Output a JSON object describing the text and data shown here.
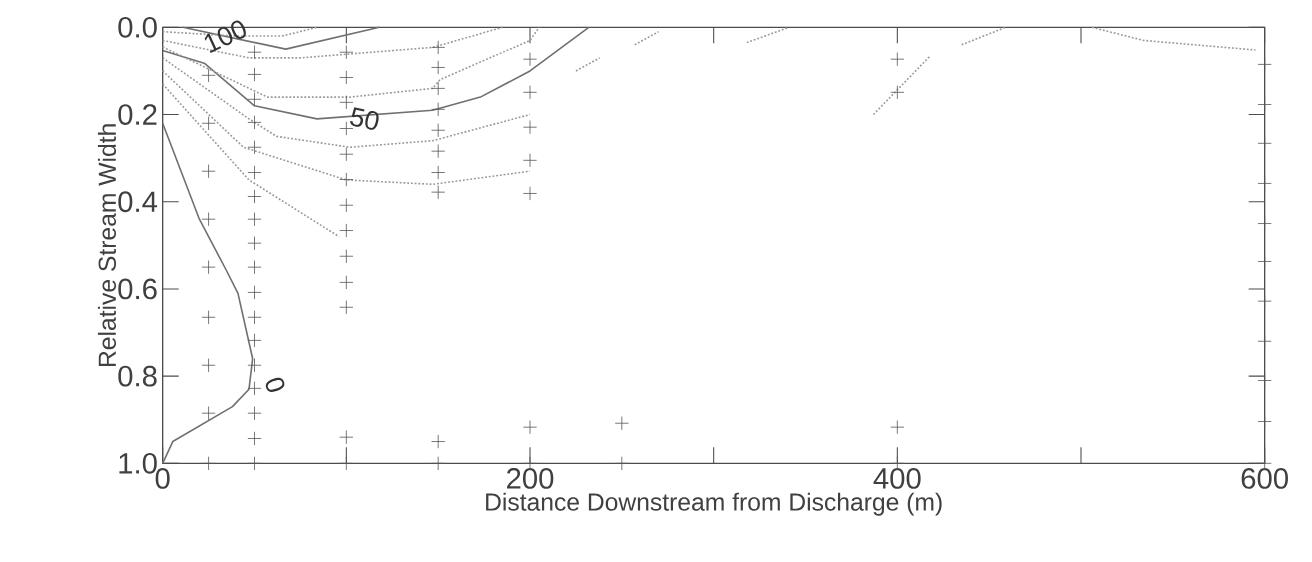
{
  "chart_data": {
    "type": "line",
    "xlabel": "Distance Downstream from Discharge (m)",
    "ylabel": "Relative Stream Width",
    "xlim": [
      0,
      600
    ],
    "ylim": [
      1.0,
      0.0
    ],
    "xticks": [
      0,
      {
        "value": 100,
        "label": null
      },
      200,
      {
        "value": 300,
        "label": null
      },
      400,
      {
        "value": 500,
        "label": null
      },
      600
    ],
    "yticks": [
      {
        "value": 0.0,
        "label": "0.0"
      },
      {
        "value": 0.2,
        "label": "0.2"
      },
      {
        "value": 0.4,
        "label": "0.4"
      },
      {
        "value": 0.6,
        "label": "0.6"
      },
      {
        "value": 0.8,
        "label": "0.8"
      },
      {
        "value": 1.0,
        "label": "1.0"
      }
    ],
    "annotations": [
      {
        "text": "100",
        "x": 34,
        "y": 0.02
      },
      {
        "text": "50",
        "x": 110,
        "y": 0.21
      },
      "0"
    ],
    "series": [
      {
        "color": "#707070",
        "line_style": "solid",
        "marker": "none",
        "x": [
          11,
          67,
          118
        ],
        "values": [
          0,
          0.05,
          0
        ]
      },
      {
        "color": "#707070",
        "line_style": "solid",
        "marker": "none",
        "x": [
          0,
          23,
          50,
          84,
          147,
          173,
          200,
          232
        ],
        "values": [
          0.053,
          0.083,
          0.18,
          0.21,
          0.19,
          0.16,
          0.1,
          0
        ]
      },
      {
        "color": "#707070",
        "line_style": "solid",
        "marker": "none",
        "x": [
          0,
          20,
          35,
          41,
          49,
          47,
          38,
          5.5,
          0
        ],
        "values": [
          0.22,
          0.44,
          0.56,
          0.61,
          0.76,
          0.83,
          0.87,
          0.95,
          1.0
        ]
      },
      {
        "color": "#999999",
        "line_style": "dotted",
        "marker": "none",
        "x": [
          0,
          40,
          65,
          84
        ],
        "values": [
          0.01,
          0.02,
          0.02,
          0
        ]
      },
      {
        "type": "line",
        "color": "#999999",
        "line_style": "dotted",
        "marker": "none",
        "x": [
          0,
          47,
          75,
          147,
          185
        ],
        "values": [
          0.03,
          0.07,
          0.07,
          0.046,
          0
        ]
      },
      {
        "type": "line",
        "color": "#999999",
        "line_style": "dotted",
        "marker": "none",
        "x": [
          0,
          57,
          102,
          147,
          151,
          200,
          205
        ],
        "values": [
          0.045,
          0.16,
          0.16,
          0.14,
          0.12,
          0.03,
          0
        ]
      },
      {
        "type": "line",
        "color": "#999999",
        "line_style": "dotted",
        "marker": "none",
        "x": [
          0,
          47,
          62,
          102,
          147,
          200
        ],
        "values": [
          0.07,
          0.21,
          0.25,
          0.275,
          0.26,
          0.2
        ]
      },
      {
        "type": "line",
        "color": "#999999",
        "line_style": "dotted",
        "marker": "none",
        "x": [
          0,
          44,
          100,
          147,
          200
        ],
        "values": [
          0.1,
          0.275,
          0.35,
          0.36,
          0.33
        ]
      },
      {
        "type": "line",
        "color": "#999999",
        "line_style": "dotted",
        "marker": "none",
        "x": [
          0,
          47,
          96
        ],
        "values": [
          0.13,
          0.35,
          0.48
        ]
      },
      {
        "type": "line",
        "color": "#999999",
        "line_style": "dotted",
        "marker": "none",
        "x": [
          225,
          238
        ],
        "values": [
          0.1,
          0.07
        ]
      },
      {
        "type": "line",
        "color": "#999999",
        "line_style": "dotted",
        "marker": "none",
        "x": [
          257,
          270
        ],
        "values": [
          0.04,
          0.01
        ]
      },
      {
        "type": "line",
        "color": "#999999",
        "line_style": "dotted",
        "marker": "none",
        "x": [
          318,
          341
        ],
        "values": [
          0.035,
          0
        ]
      },
      {
        "type": "line",
        "color": "#999999",
        "line_style": "dotted",
        "marker": "none",
        "x": [
          387,
          418
        ],
        "values": [
          0.2,
          0.065
        ]
      },
      {
        "type": "line",
        "color": "#999999",
        "line_style": "dotted",
        "marker": "none",
        "x": [
          435,
          459
        ],
        "values": [
          0.04,
          0
        ]
      },
      {
        "type": "line",
        "color": "#999999",
        "line_style": "dotted",
        "marker": "none",
        "x": [
          506,
          534,
          595
        ],
        "values": [
          0,
          0.03,
          0.052
        ]
      },
      {
        "type": "scatter",
        "color": "#555555",
        "marker": "cross",
        "x": [
          25,
          25,
          25,
          25,
          25,
          25,
          25,
          25,
          25,
          50,
          50,
          50,
          50,
          50,
          50,
          50,
          50,
          50,
          50,
          50,
          50,
          50,
          50,
          50,
          50,
          50,
          50,
          100,
          100,
          100,
          100,
          100,
          100,
          100,
          100,
          100,
          100,
          100,
          100,
          100,
          150,
          150,
          150,
          150,
          150,
          150,
          150,
          150,
          150,
          150,
          200,
          200,
          200,
          200,
          200,
          200,
          200,
          250,
          250,
          400,
          400,
          400,
          400,
          600,
          600,
          600,
          600,
          600,
          600,
          600,
          600,
          600,
          600,
          600
        ],
        "values": [
          0.11,
          0.22,
          0.33,
          0.44,
          0.55,
          0.665,
          0.775,
          0.885,
          1.0,
          0.057,
          0.108,
          0.165,
          0.218,
          0.275,
          0.333,
          0.388,
          0.44,
          0.495,
          0.55,
          0.608,
          0.665,
          0.718,
          0.775,
          0.828,
          0.885,
          0.943,
          1.0,
          0.057,
          0.115,
          0.172,
          0.232,
          0.291,
          0.349,
          0.408,
          0.466,
          0.525,
          0.585,
          0.642,
          0.94,
          1.0,
          0.046,
          0.092,
          0.14,
          0.188,
          0.236,
          0.284,
          0.333,
          0.378,
          0.95,
          1.0,
          0.073,
          0.149,
          0.229,
          0.305,
          0.381,
          0.917,
          1.0,
          0.908,
          1.0,
          0.073,
          0.149,
          0.917,
          1.0,
          0.085,
          0.177,
          0.266,
          0.358,
          0.45,
          0.537,
          0.628,
          0.72,
          0.81,
          0.904,
          1.0
        ]
      }
    ]
  }
}
